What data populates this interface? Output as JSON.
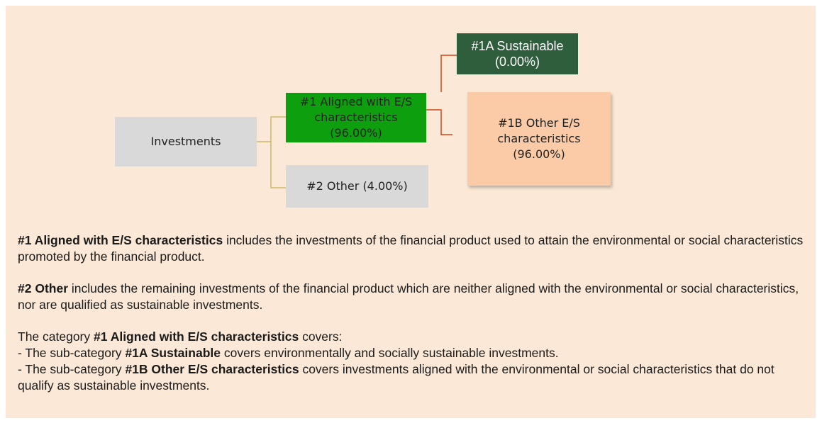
{
  "nodes": [
    {
      "lines": [
        "Investments"
      ]
    },
    {
      "lines": [
        "#1 Aligned with E/S",
        "characteristics",
        "(96.00%)"
      ]
    },
    {
      "lines": [
        "#2 Other (4.00%)"
      ]
    },
    {
      "lines": [
        "#1A Sustainable",
        "(0.00%)"
      ]
    },
    {
      "lines": [
        "#1B Other E/S",
        "characteristics",
        "(96.00%)"
      ]
    }
  ],
  "notes": [
    {
      "term": "#1 Aligned with E/S characteristics",
      "text": "includes the investments of the financial product used to attain the environmental or social characteristics promoted by the financial product."
    },
    {
      "term": "#2 Other",
      "text": "includes the remaining investments of the financial product which are neither aligned with the environmental or social characteristics, nor are qualified as sustainable investments."
    }
  ],
  "category": {
    "lead": "The category",
    "term": "#1 Aligned with E/S characteristics",
    "tail": "covers:",
    "items": [
      {
        "lead": "- The sub-category",
        "term": "#1A Sustainable",
        "text": "covers environmentally and socially sustainable investments."
      },
      {
        "lead": "- The sub-category",
        "term": "#1B Other E/S characteristics",
        "text": "covers investments aligned with the environmental or social characteristics that do not qualify as sustainable investments."
      }
    ]
  }
}
